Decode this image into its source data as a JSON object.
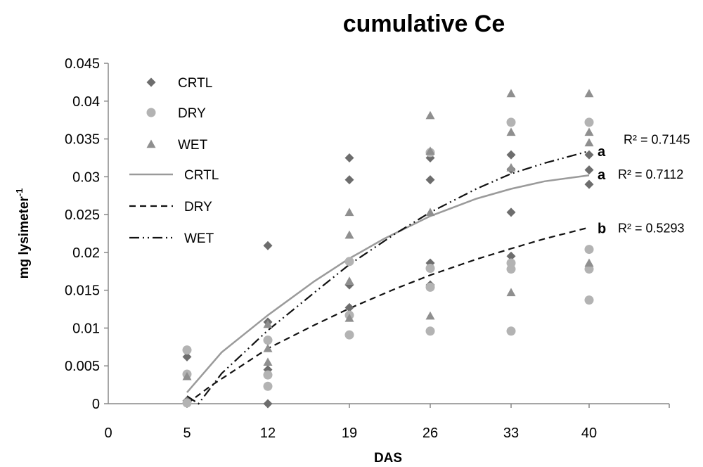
{
  "chart_data": {
    "type": "scatter",
    "title": "cumulative Ce",
    "xlabel": "DAS",
    "ylabel": "mg lysimeter",
    "ylabel_sup": "-1",
    "xlim": [
      0,
      45
    ],
    "ylim": [
      0,
      0.045
    ],
    "x_ticks": [
      "0",
      "5",
      "12",
      "19",
      "26",
      "33",
      "40"
    ],
    "y_ticks": [
      "0",
      "0.005",
      "0.01",
      "0.015",
      "0.02",
      "0.025",
      "0.03",
      "0.035",
      "0.04",
      "0.045"
    ],
    "colors": {
      "CRTL": "#6d6d6d",
      "DRY": "#b3b3b3",
      "WET": "#8f8f8f",
      "CRTL_line": "#9a9a9a",
      "DRY_line": "#111111",
      "WET_line": "#111111"
    },
    "series": [
      {
        "name": "CRTL",
        "marker": "diamond",
        "points": [
          [
            5,
            0.0062
          ],
          [
            5,
            0.0004
          ],
          [
            12,
            0.0209
          ],
          [
            12,
            0.0108
          ],
          [
            12,
            0.0045
          ],
          [
            12,
            0.0
          ],
          [
            19,
            0.0325
          ],
          [
            19,
            0.0296
          ],
          [
            19,
            0.0157
          ],
          [
            19,
            0.0127
          ],
          [
            26,
            0.0325
          ],
          [
            26,
            0.0296
          ],
          [
            26,
            0.0186
          ],
          [
            26,
            0.0157
          ],
          [
            33,
            0.0329
          ],
          [
            33,
            0.031
          ],
          [
            33,
            0.0253
          ],
          [
            33,
            0.0195
          ],
          [
            40,
            0.0329
          ],
          [
            40,
            0.0309
          ],
          [
            40,
            0.029
          ]
        ]
      },
      {
        "name": "DRY",
        "marker": "circle",
        "points": [
          [
            5,
            0.0071
          ],
          [
            5,
            0.0039
          ],
          [
            5,
            0.0001
          ],
          [
            12,
            0.0084
          ],
          [
            12,
            0.0038
          ],
          [
            12,
            0.0023
          ],
          [
            19,
            0.0188
          ],
          [
            19,
            0.0117
          ],
          [
            19,
            0.0091
          ],
          [
            26,
            0.0332
          ],
          [
            26,
            0.0179
          ],
          [
            26,
            0.0154
          ],
          [
            26,
            0.0096
          ],
          [
            33,
            0.0372
          ],
          [
            33,
            0.0186
          ],
          [
            33,
            0.0178
          ],
          [
            33,
            0.0096
          ],
          [
            40,
            0.0372
          ],
          [
            40,
            0.0204
          ],
          [
            40,
            0.0178
          ],
          [
            40,
            0.0137
          ]
        ]
      },
      {
        "name": "WET",
        "marker": "triangle",
        "points": [
          [
            5,
            0.0036
          ],
          [
            12,
            0.0105
          ],
          [
            12,
            0.0073
          ],
          [
            12,
            0.0055
          ],
          [
            19,
            0.0253
          ],
          [
            19,
            0.0223
          ],
          [
            19,
            0.0162
          ],
          [
            19,
            0.0113
          ],
          [
            26,
            0.0381
          ],
          [
            26,
            0.0334
          ],
          [
            26,
            0.0253
          ],
          [
            26,
            0.0116
          ],
          [
            33,
            0.041
          ],
          [
            33,
            0.0359
          ],
          [
            33,
            0.0312
          ],
          [
            33,
            0.0147
          ],
          [
            40,
            0.041
          ],
          [
            40,
            0.0359
          ],
          [
            40,
            0.0345
          ],
          [
            40,
            0.0186
          ]
        ]
      }
    ],
    "trendlines": [
      {
        "name": "CRTL",
        "style": "solid",
        "points": [
          [
            5,
            0.0015
          ],
          [
            8,
            0.0068
          ],
          [
            12,
            0.0117
          ],
          [
            16,
            0.0162
          ],
          [
            19,
            0.0192
          ],
          [
            22,
            0.0218
          ],
          [
            26,
            0.0248
          ],
          [
            30,
            0.0271
          ],
          [
            33,
            0.0284
          ],
          [
            36,
            0.0294
          ],
          [
            40,
            0.0302
          ]
        ],
        "r2": "R² = 0.7112",
        "letter": "a"
      },
      {
        "name": "DRY",
        "style": "dashed",
        "points": [
          [
            5,
            0.0
          ],
          [
            7,
            0.0023
          ],
          [
            12,
            0.0073
          ],
          [
            16,
            0.0104
          ],
          [
            19,
            0.0126
          ],
          [
            23,
            0.0152
          ],
          [
            26,
            0.017
          ],
          [
            30,
            0.0191
          ],
          [
            33,
            0.0205
          ],
          [
            36,
            0.0218
          ],
          [
            40,
            0.0233
          ]
        ],
        "r2": "R² = 0.5293",
        "letter": "b"
      },
      {
        "name": "WET",
        "style": "dashdot",
        "points": [
          [
            5,
            0.001
          ],
          [
            6,
            0.0
          ],
          [
            8,
            0.004
          ],
          [
            12,
            0.0097
          ],
          [
            16,
            0.0147
          ],
          [
            19,
            0.0184
          ],
          [
            23,
            0.0225
          ],
          [
            26,
            0.0253
          ],
          [
            30,
            0.0284
          ],
          [
            33,
            0.0304
          ],
          [
            36,
            0.0318
          ],
          [
            40,
            0.0334
          ]
        ],
        "r2": "R² = 0.7145",
        "letter": "a"
      }
    ],
    "legend": {
      "position": "top-left",
      "entries": [
        {
          "label": "CRTL",
          "kind": "diamond"
        },
        {
          "label": "DRY",
          "kind": "circle"
        },
        {
          "label": "WET",
          "kind": "triangle"
        },
        {
          "label": "CRTL",
          "kind": "solid"
        },
        {
          "label": "DRY",
          "kind": "dashed"
        },
        {
          "label": "WET",
          "kind": "dashdot"
        }
      ]
    },
    "grid": false
  }
}
